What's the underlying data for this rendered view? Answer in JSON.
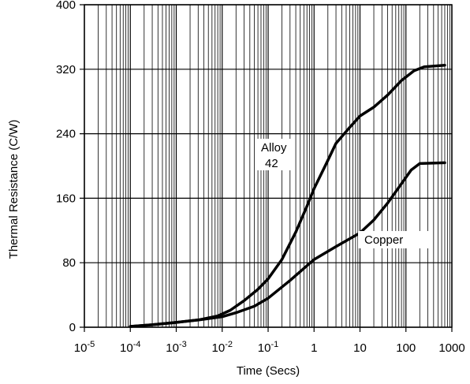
{
  "chart_data": {
    "type": "line",
    "title": "",
    "xlabel": "Time (Secs)",
    "ylabel": "Thermal Resistance (C/W)",
    "x_scale": "log",
    "xlim": [
      1e-05,
      1000
    ],
    "ylim": [
      0,
      400
    ],
    "grid": true,
    "y_ticks": [
      0,
      80,
      160,
      240,
      320,
      400
    ],
    "x_ticks": [
      {
        "value": 1e-05,
        "base": "10",
        "exp": "-5"
      },
      {
        "value": 0.0001,
        "base": "10",
        "exp": "-4"
      },
      {
        "value": 0.001,
        "base": "10",
        "exp": "-3"
      },
      {
        "value": 0.01,
        "base": "10",
        "exp": "-2"
      },
      {
        "value": 0.1,
        "base": "10",
        "exp": "-1"
      },
      {
        "value": 1,
        "base": "1",
        "exp": ""
      },
      {
        "value": 10,
        "base": "10",
        "exp": ""
      },
      {
        "value": 100,
        "base": "100",
        "exp": ""
      },
      {
        "value": 1000,
        "base": "1000",
        "exp": ""
      }
    ],
    "series": [
      {
        "name": "Alloy 42",
        "points": [
          [
            0.0001,
            1
          ],
          [
            0.0003,
            3
          ],
          [
            0.001,
            6
          ],
          [
            0.003,
            9
          ],
          [
            0.008,
            14
          ],
          [
            0.015,
            21
          ],
          [
            0.03,
            33
          ],
          [
            0.06,
            47
          ],
          [
            0.1,
            60
          ],
          [
            0.2,
            84
          ],
          [
            0.4,
            118
          ],
          [
            0.7,
            150
          ],
          [
            1,
            172
          ],
          [
            2,
            207
          ],
          [
            3,
            228
          ],
          [
            6,
            248
          ],
          [
            10,
            262
          ],
          [
            20,
            273
          ],
          [
            40,
            288
          ],
          [
            80,
            306
          ],
          [
            150,
            318
          ],
          [
            250,
            323
          ],
          [
            700,
            325
          ]
        ]
      },
      {
        "name": "Copper",
        "points": [
          [
            0.0001,
            1
          ],
          [
            0.0003,
            3
          ],
          [
            0.001,
            6
          ],
          [
            0.003,
            9
          ],
          [
            0.01,
            13
          ],
          [
            0.02,
            18
          ],
          [
            0.05,
            26
          ],
          [
            0.1,
            36
          ],
          [
            0.3,
            58
          ],
          [
            1,
            84
          ],
          [
            3,
            100
          ],
          [
            10,
            117
          ],
          [
            20,
            133
          ],
          [
            40,
            154
          ],
          [
            80,
            178
          ],
          [
            130,
            195
          ],
          [
            200,
            203
          ],
          [
            700,
            204
          ]
        ]
      }
    ],
    "annotations": [
      {
        "line1": "Alloy",
        "line2": "42"
      },
      {
        "line1": "Copper"
      }
    ]
  }
}
